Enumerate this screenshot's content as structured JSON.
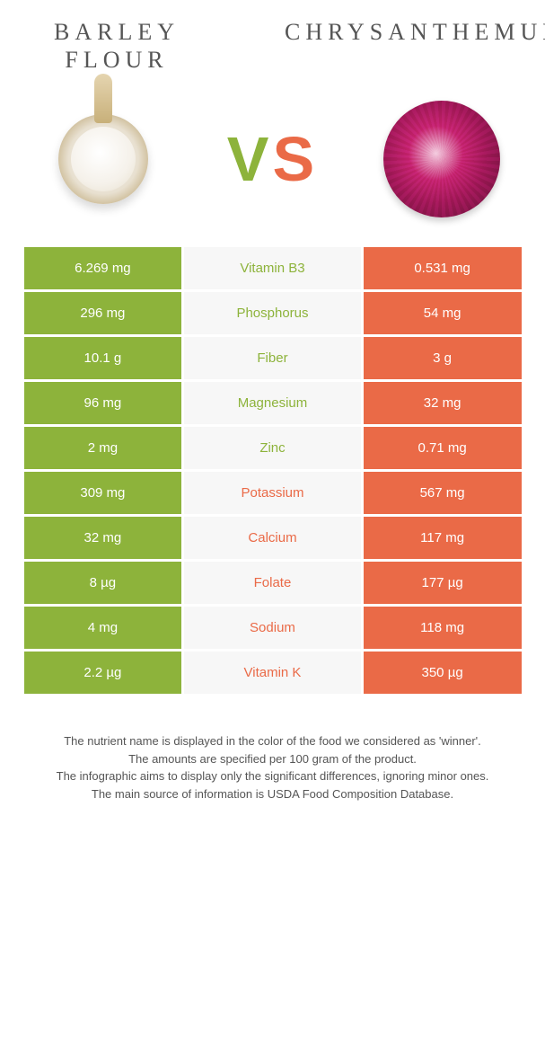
{
  "header": {
    "left_title": "BARLEY FLOUR",
    "right_title": "CHRYSANTHEMUM"
  },
  "vs": {
    "v": "V",
    "s": "S"
  },
  "colors": {
    "left": "#8db33b",
    "right": "#ea6a47",
    "mid_bg": "#f7f7f7",
    "white": "#ffffff"
  },
  "fonts": {
    "title_family": "Times New Roman",
    "title_size_pt": 20,
    "body_size_pt": 11
  },
  "rows": [
    {
      "left": "6.269 mg",
      "label": "Vitamin B3",
      "right": "0.531 mg",
      "winner": "left"
    },
    {
      "left": "296 mg",
      "label": "Phosphorus",
      "right": "54 mg",
      "winner": "left"
    },
    {
      "left": "10.1 g",
      "label": "Fiber",
      "right": "3 g",
      "winner": "left"
    },
    {
      "left": "96 mg",
      "label": "Magnesium",
      "right": "32 mg",
      "winner": "left"
    },
    {
      "left": "2 mg",
      "label": "Zinc",
      "right": "0.71 mg",
      "winner": "left"
    },
    {
      "left": "309 mg",
      "label": "Potassium",
      "right": "567 mg",
      "winner": "right"
    },
    {
      "left": "32 mg",
      "label": "Calcium",
      "right": "117 mg",
      "winner": "right"
    },
    {
      "left": "8 µg",
      "label": "Folate",
      "right": "177 µg",
      "winner": "right"
    },
    {
      "left": "4 mg",
      "label": "Sodium",
      "right": "118 mg",
      "winner": "right"
    },
    {
      "left": "2.2 µg",
      "label": "Vitamin K",
      "right": "350 µg",
      "winner": "right"
    }
  ],
  "footer_lines": [
    "The nutrient name is displayed in the color of the food we considered as 'winner'.",
    "The amounts are specified per 100 gram of the product.",
    "The infographic aims to display only the significant differences, ignoring minor ones.",
    "The main source of information is USDA Food Composition Database."
  ]
}
